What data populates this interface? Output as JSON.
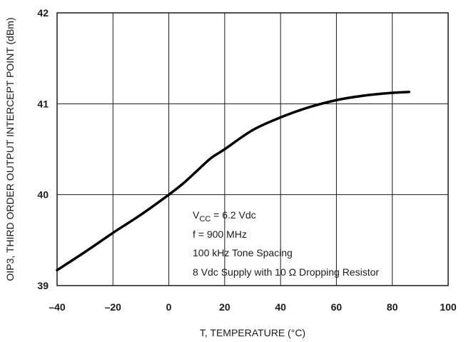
{
  "chart_data": {
    "type": "line",
    "title": "",
    "xlabel": "T, TEMPERATURE (°C)",
    "ylabel": "OIP3, THIRD ORDER OUTPUT INTERCEPT POINT (dBm)",
    "xlim": [
      -40,
      100
    ],
    "ylim": [
      39,
      42
    ],
    "xticks": [
      -40,
      -20,
      0,
      20,
      40,
      60,
      80,
      100
    ],
    "yticks": [
      39,
      40,
      41,
      42
    ],
    "grid": true,
    "series": [
      {
        "x": [
          -40,
          -30,
          -20,
          -10,
          0,
          5,
          10,
          15,
          20,
          30,
          40,
          50,
          60,
          70,
          80,
          86
        ],
        "y": [
          39.17,
          39.37,
          39.58,
          39.78,
          40.0,
          40.12,
          40.26,
          40.4,
          40.5,
          40.71,
          40.85,
          40.96,
          41.04,
          41.09,
          41.12,
          41.13
        ]
      }
    ],
    "annotations": {
      "vcc_main": "V",
      "vcc_sub": "CC",
      "vcc_rest": " = 6.2 Vdc",
      "freq": "f = 900 MHz",
      "spacing": "100 kHz Tone Spacing",
      "supply": "8 Vdc Supply with 10 Ω Dropping Resistor"
    },
    "line_color": "#000000"
  }
}
